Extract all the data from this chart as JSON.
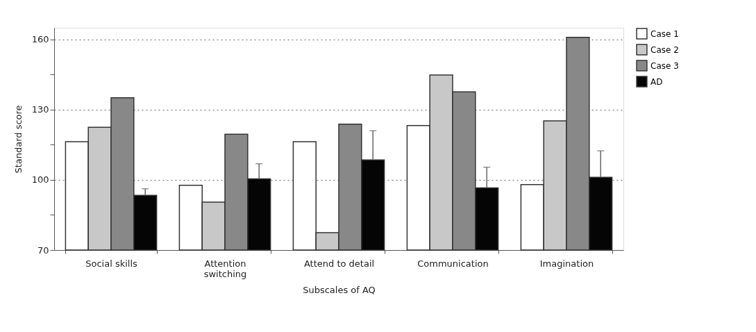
{
  "chart_data": {
    "type": "bar",
    "xlabel": "Subscales of AQ",
    "ylabel": "Standard score",
    "categories": [
      "Social skills",
      "Attention\nswitching",
      "Attend to detail",
      "Communication",
      "Imagination"
    ],
    "series": [
      {
        "name": "Case 1",
        "color": "#ffffff",
        "values": [
          116.3,
          97.7,
          116.3,
          123.2,
          98.0
        ]
      },
      {
        "name": "Case 2",
        "color": "#c8c8c8",
        "values": [
          122.5,
          90.5,
          77.4,
          144.8,
          125.2
        ]
      },
      {
        "name": "Case 3",
        "color": "#888888",
        "values": [
          135.1,
          119.5,
          123.8,
          137.6,
          160.9
        ]
      },
      {
        "name": "AD",
        "color": "#050505",
        "values": [
          93.4,
          100.4,
          108.5,
          96.6,
          101.1
        ],
        "errors": [
          [
            93.4,
            96.2
          ],
          [
            100.4,
            106.9
          ],
          [
            108.5,
            121.0
          ],
          [
            96.6,
            105.4
          ],
          [
            101.1,
            112.4
          ]
        ]
      }
    ],
    "ylim": [
      70,
      165
    ],
    "yticks": [
      70,
      {
        "value": 85,
        "label": null
      },
      100,
      {
        "value": 115,
        "label": null
      },
      130,
      {
        "value": 145,
        "label": null
      },
      160
    ],
    "grid": "y",
    "legend": "top right"
  }
}
